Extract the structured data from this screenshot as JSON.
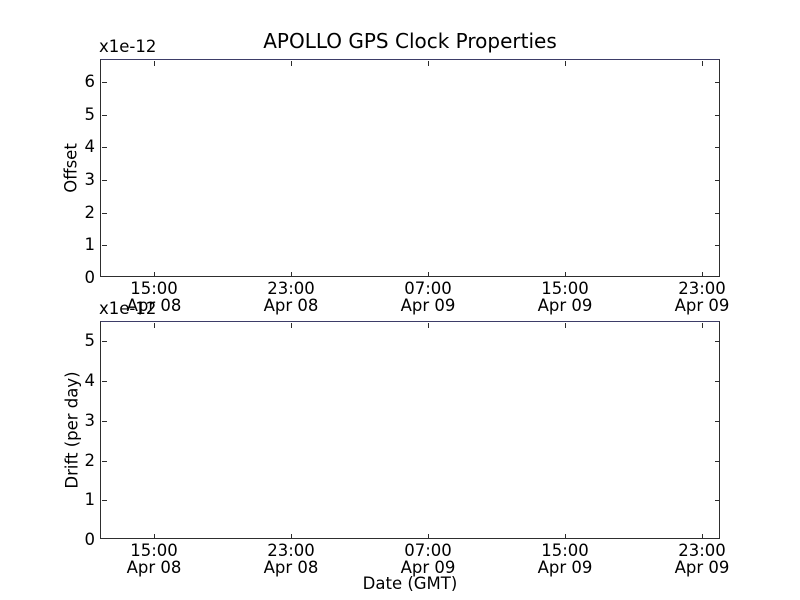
{
  "figure": {
    "title": "APOLLO GPS Clock Properties",
    "background_color": "#ffffff",
    "text_color": "#000000",
    "spine_color": "#2e2e2e",
    "top_spine_color": "#3d3d68"
  },
  "chart_data": [
    {
      "type": "line",
      "subplot": "top",
      "title": "APOLLO GPS Clock Properties",
      "ylabel": "Offset",
      "offset_text": "x1e-12",
      "grid": false,
      "legend": false,
      "series": [],
      "xlim_hours": [
        11.9,
        48.1
      ],
      "ylim": [
        0,
        6.68
      ],
      "yticks": [
        0,
        1,
        2,
        3,
        4,
        5,
        6
      ],
      "xticks_hours": [
        15,
        23,
        31,
        39,
        47
      ],
      "xtick_labels": [
        [
          "15:00",
          "Apr 08"
        ],
        [
          "23:00",
          "Apr 08"
        ],
        [
          "07:00",
          "Apr 09"
        ],
        [
          "15:00",
          "Apr 09"
        ],
        [
          "23:00",
          "Apr 09"
        ]
      ]
    },
    {
      "type": "line",
      "subplot": "bottom",
      "ylabel": "Drift (per day)",
      "xlabel": "Date (GMT)",
      "offset_text": "x1e-12",
      "grid": false,
      "legend": false,
      "series": [],
      "xlim_hours": [
        11.9,
        48.1
      ],
      "ylim": [
        0,
        5.49
      ],
      "yticks": [
        0,
        1,
        2,
        3,
        4,
        5
      ],
      "xticks_hours": [
        15,
        23,
        31,
        39,
        47
      ],
      "xtick_labels": [
        [
          "15:00",
          "Apr 08"
        ],
        [
          "23:00",
          "Apr 08"
        ],
        [
          "07:00",
          "Apr 09"
        ],
        [
          "15:00",
          "Apr 09"
        ],
        [
          "23:00",
          "Apr 09"
        ]
      ]
    }
  ]
}
